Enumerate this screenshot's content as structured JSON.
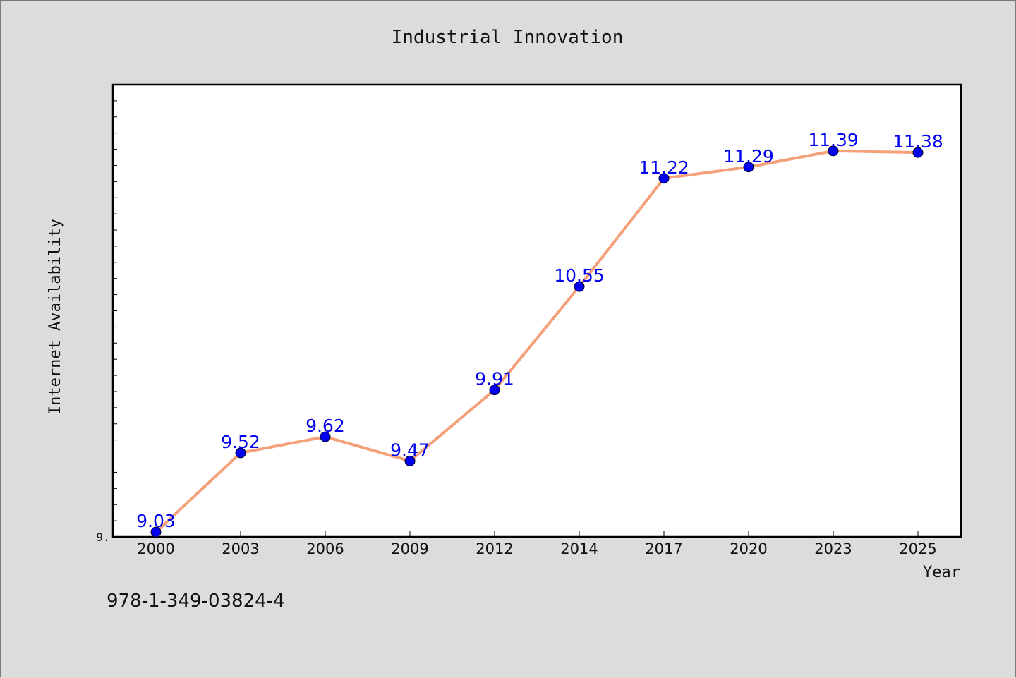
{
  "chart_data": {
    "type": "line",
    "title": "Industrial Innovation",
    "xlabel": "Year",
    "ylabel": "Internet Availability",
    "categories": [
      "2000",
      "2003",
      "2006",
      "2009",
      "2012",
      "2014",
      "2017",
      "2020",
      "2023",
      "2025"
    ],
    "series": [
      {
        "values": [
          9.03,
          9.52,
          9.62,
          9.47,
          9.91,
          10.55,
          11.22,
          11.29,
          11.39,
          11.38
        ],
        "data_labels": [
          "9.03",
          "9.52",
          "9.62",
          "9.47",
          "9.91",
          "10.55",
          "11.22",
          "11.29",
          "11.39",
          "11.38"
        ],
        "line_color": "#f4a07a",
        "marker_color": "#0000ee"
      }
    ],
    "y_tick_labels": [
      "9."
    ],
    "ylim": [
      9.0,
      11.8
    ],
    "grid": false,
    "legend": "none"
  },
  "footer_text": "978-1-349-03824-4",
  "colors": {
    "background": "#dcdcdc",
    "plot_area": "#ffffff",
    "data_label": "#0000ee"
  }
}
